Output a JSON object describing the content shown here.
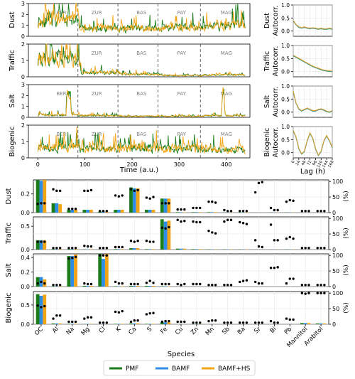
{
  "colors": {
    "pmf": "#1a7d1a",
    "bamf": "#2f8de6",
    "bamfhs": "#f2a417",
    "dots": "#000000",
    "site_text": "#808080",
    "grid": "#e6e6e6"
  },
  "legend": {
    "items": [
      "PMF",
      "BAMF",
      "BAMF+HS"
    ],
    "placement": "bottom-center"
  },
  "chart_data": [
    {
      "type": "line",
      "panel": "time-series",
      "xlabel": "Time (a.u.)",
      "xlim": [
        -20,
        450
      ],
      "x_ticks": [
        0,
        100,
        200,
        300,
        400
      ],
      "sites": [
        {
          "label": "BER",
          "x": 50
        },
        {
          "label": "ZUR",
          "x": 125
        },
        {
          "label": "BAS",
          "x": 220
        },
        {
          "label": "PAY",
          "x": 305
        },
        {
          "label": "MAG",
          "x": 400
        }
      ],
      "site_boundaries": [
        85,
        170,
        255,
        345
      ],
      "series_names": [
        "PMF",
        "BAMF",
        "BAMF+HS"
      ],
      "rows": [
        {
          "ylabel": "Dust",
          "ylim": [
            0,
            3
          ],
          "y_ticks": [
            0,
            1,
            2,
            3
          ],
          "levels": [
            1.5,
            0.7,
            0.7,
            0.8,
            1.0
          ]
        },
        {
          "ylabel": "Traffic",
          "ylim": [
            0,
            2
          ],
          "y_ticks": [
            0,
            1,
            2
          ],
          "levels": [
            1.1,
            0.25,
            0.15,
            0.08,
            0.12
          ]
        },
        {
          "ylabel": "Salt",
          "ylim": [
            0,
            3
          ],
          "y_ticks": [
            0,
            1,
            2,
            3
          ],
          "levels": [
            0.2,
            0.15,
            0.1,
            0.1,
            0.15
          ]
        },
        {
          "ylabel": "Biogenic",
          "ylim": [
            0,
            2
          ],
          "y_ticks": [
            0,
            1,
            2
          ],
          "levels": [
            0.6,
            0.5,
            0.6,
            0.55,
            0.5
          ]
        }
      ]
    },
    {
      "type": "line",
      "panel": "autocorrelation",
      "xlabel": "Lag (h)",
      "x_ticks": [
        "0",
        "24",
        "48",
        "72",
        "96",
        "120",
        "144",
        "168"
      ],
      "lag_hours": [
        0,
        12,
        24,
        36,
        48,
        60,
        72,
        84,
        96,
        108,
        120,
        132,
        144,
        156,
        168
      ],
      "rows": [
        {
          "ylabel": "Dust",
          "ylabel2": "Autocorr.",
          "ylim": [
            -0.2,
            1.0
          ],
          "y_ticks": [
            "0.0",
            "0.5",
            "1.0"
          ],
          "values": [
            0.4,
            0.25,
            0.15,
            0.12,
            0.15,
            0.12,
            0.1,
            0.12,
            0.1,
            0.08,
            0.1,
            0.08,
            0.08,
            0.1,
            0.08
          ]
        },
        {
          "ylabel": "Traffic",
          "ylabel2": "Autocorr.",
          "ylim": [
            -0.2,
            1.0
          ],
          "y_ticks": [
            "0.0",
            "0.5",
            "1.0"
          ],
          "values": [
            0.62,
            0.56,
            0.5,
            0.44,
            0.38,
            0.32,
            0.26,
            0.2,
            0.16,
            0.12,
            0.08,
            0.05,
            0.03,
            0.02,
            0.01
          ]
        },
        {
          "ylabel": "Salt",
          "ylabel2": "Autocorr.",
          "ylim": [
            -0.2,
            1.0
          ],
          "y_ticks": [
            "0.0",
            "0.5",
            "1.0"
          ],
          "values": [
            0.8,
            0.35,
            0.12,
            0.05,
            0.1,
            0.15,
            0.1,
            0.05,
            0.05,
            0.1,
            0.12,
            0.08,
            0.03,
            0.0,
            0.05
          ]
        },
        {
          "ylabel": "Biogenic",
          "ylabel2": "Autocorr.",
          "ylim": [
            -0.2,
            1.0
          ],
          "y_ticks": [
            "0.0",
            "0.5",
            "1.0"
          ],
          "values": [
            0.85,
            0.6,
            0.15,
            -0.05,
            0.05,
            0.45,
            0.75,
            0.55,
            0.15,
            -0.1,
            0.05,
            0.45,
            0.65,
            0.45,
            0.2
          ]
        }
      ]
    },
    {
      "type": "bar",
      "panel": "profiles",
      "xlabel": "Species",
      "y2label": "(%)",
      "categories": [
        "OC",
        "Al",
        "Na",
        "Mg",
        "Cl",
        "K",
        "Ca",
        "S",
        "Fe",
        "Cu",
        "Zn",
        "Mn",
        "Sb",
        "Ba",
        "Sr",
        "Bi",
        "Pb",
        "Mannitol",
        "Arabitol"
      ],
      "series_names": [
        "PMF",
        "BAMF",
        "BAMF+HS"
      ],
      "rows": [
        {
          "ylabel": "Dust",
          "ylim": [
            0,
            0.35
          ],
          "y_ticks": [
            "0.0",
            "0.2"
          ],
          "y2_ticks": [
            "0",
            "50",
            "100"
          ],
          "series": [
            [
              0.35,
              0.1,
              0.03,
              0.03,
              0.01,
              0.03,
              0.27,
              0.03,
              0.15,
              0.005,
              0.005,
              0.005,
              0.002,
              0.003,
              0.001,
              0.002,
              0.002,
              0.0,
              0.0
            ],
            [
              0.34,
              0.1,
              0.03,
              0.03,
              0.01,
              0.03,
              0.26,
              0.03,
              0.15,
              0.004,
              0.005,
              0.005,
              0.002,
              0.003,
              0.001,
              0.002,
              0.002,
              0.0,
              0.0
            ],
            [
              0.35,
              0.09,
              0.03,
              0.03,
              0.01,
              0.03,
              0.26,
              0.03,
              0.15,
              0.004,
              0.005,
              0.005,
              0.002,
              0.003,
              0.001,
              0.002,
              0.002,
              0.0,
              0.0
            ]
          ],
          "percent": [
            [
              28,
              30,
              30
            ],
            [
              75,
              70,
              70
            ],
            [
              12,
              12,
              12
            ],
            [
              70,
              70,
              72
            ],
            [
              5,
              5,
              5
            ],
            [
              55,
              52,
              55
            ],
            [
              75,
              70,
              72
            ],
            [
              48,
              45,
              50
            ],
            [
              30,
              30,
              30
            ],
            [
              10,
              10,
              10
            ],
            [
              15,
              15,
              15
            ],
            [
              35,
              35,
              32
            ],
            [
              8,
              5,
              5
            ],
            [
              5,
              5,
              5
            ],
            [
              65,
              95,
              98
            ],
            [
              15,
              8,
              8
            ],
            [
              35,
              40,
              38
            ],
            [
              5,
              5,
              5
            ],
            [
              5,
              5,
              5
            ]
          ]
        },
        {
          "ylabel": "Traffic",
          "ylim": [
            0,
            0.7
          ],
          "y_ticks": [
            "0.0",
            "0.5"
          ],
          "y2_ticks": [
            "0",
            "50",
            "100"
          ],
          "series": [
            [
              0.2,
              0.01,
              0.01,
              0.005,
              0.002,
              0.01,
              0.03,
              0.01,
              0.65,
              0.02,
              0.01,
              0.005,
              0.005,
              0.005,
              0.001,
              0.002,
              0.003,
              0.0,
              0.0
            ],
            [
              0.2,
              0.01,
              0.01,
              0.005,
              0.002,
              0.01,
              0.03,
              0.01,
              0.6,
              0.02,
              0.01,
              0.005,
              0.005,
              0.005,
              0.001,
              0.002,
              0.003,
              0.0,
              0.0
            ],
            [
              0.2,
              0.01,
              0.01,
              0.005,
              0.002,
              0.01,
              0.03,
              0.01,
              0.62,
              0.02,
              0.01,
              0.005,
              0.005,
              0.005,
              0.001,
              0.002,
              0.003,
              0.0,
              0.0
            ]
          ],
          "percent": [
            [
              25,
              25,
              25
            ],
            [
              5,
              5,
              5
            ],
            [
              5,
              5,
              5
            ],
            [
              12,
              10,
              10
            ],
            [
              5,
              5,
              5
            ],
            [
              8,
              8,
              8
            ],
            [
              28,
              25,
              28
            ],
            [
              28,
              25,
              25
            ],
            [
              70,
              68,
              72
            ],
            [
              95,
              90,
              92
            ],
            [
              90,
              88,
              88
            ],
            [
              60,
              55,
              52
            ],
            [
              90,
              95,
              95
            ],
            [
              88,
              85,
              82
            ],
            [
              30,
              10,
              8
            ],
            [
              80,
              30,
              30
            ],
            [
              35,
              40,
              35
            ],
            [
              5,
              5,
              5
            ],
            [
              5,
              5,
              5
            ]
          ]
        },
        {
          "ylabel": "Salt",
          "ylim": [
            0,
            0.45
          ],
          "y_ticks": [
            "0.0",
            "0.2",
            "0.4"
          ],
          "y2_ticks": [
            "0",
            "50",
            "100"
          ],
          "series": [
            [
              0.13,
              0.005,
              0.42,
              0.01,
              0.45,
              0.005,
              0.01,
              0.01,
              0.005,
              0.001,
              0.001,
              0.0,
              0.0,
              0.0,
              0.0,
              0.0,
              0.0,
              0.0,
              0.0
            ],
            [
              0.13,
              0.005,
              0.42,
              0.01,
              0.38,
              0.005,
              0.01,
              0.01,
              0.005,
              0.001,
              0.001,
              0.0,
              0.0,
              0.0,
              0.0,
              0.0,
              0.0,
              0.0,
              0.0
            ],
            [
              0.1,
              0.005,
              0.44,
              0.01,
              0.45,
              0.005,
              0.01,
              0.01,
              0.005,
              0.001,
              0.001,
              0.0,
              0.0,
              0.0,
              0.0,
              0.0,
              0.0,
              0.0,
              0.0
            ]
          ],
          "percent": [
            [
              10,
              15,
              10
            ],
            [
              5,
              5,
              5
            ],
            [
              90,
              92,
              95
            ],
            [
              10,
              8,
              8
            ],
            [
              100,
              100,
              100
            ],
            [
              15,
              10,
              10
            ],
            [
              8,
              8,
              8
            ],
            [
              12,
              18,
              12
            ],
            [
              8,
              8,
              8
            ],
            [
              8,
              5,
              8
            ],
            [
              8,
              8,
              8
            ],
            [
              5,
              5,
              5
            ],
            [
              5,
              5,
              5
            ],
            [
              15,
              18,
              20
            ],
            [
              15,
              10,
              10
            ],
            [
              60,
              60,
              62
            ],
            [
              10,
              25,
              25
            ],
            [
              5,
              5,
              5
            ],
            [
              5,
              5,
              5
            ]
          ]
        },
        {
          "ylabel": "Biogenic",
          "ylim": [
            0,
            0.85
          ],
          "y_ticks": [
            "0.0",
            "0.5"
          ],
          "y2_ticks": [
            "0",
            "50",
            "100"
          ],
          "series": [
            [
              0.78,
              0.02,
              0.01,
              0.005,
              0.002,
              0.01,
              0.02,
              0.01,
              0.05,
              0.002,
              0.003,
              0.002,
              0.001,
              0.001,
              0.0,
              0.001,
              0.002,
              0.03,
              0.02
            ],
            [
              0.74,
              0.02,
              0.01,
              0.005,
              0.002,
              0.01,
              0.02,
              0.01,
              0.05,
              0.002,
              0.003,
              0.002,
              0.001,
              0.001,
              0.0,
              0.001,
              0.002,
              0.03,
              0.02
            ],
            [
              0.77,
              0.02,
              0.01,
              0.005,
              0.002,
              0.01,
              0.02,
              0.01,
              0.05,
              0.002,
              0.003,
              0.002,
              0.001,
              0.001,
              0.0,
              0.001,
              0.002,
              0.03,
              0.02
            ]
          ],
          "percent": [
            [
              60,
              55,
              58
            ],
            [
              18,
              28,
              28
            ],
            [
              8,
              8,
              8
            ],
            [
              18,
              22,
              22
            ],
            [
              5,
              5,
              5
            ],
            [
              40,
              38,
              42
            ],
            [
              8,
              12,
              12
            ],
            [
              32,
              35,
              36
            ],
            [
              8,
              10,
              10
            ],
            [
              8,
              8,
              8
            ],
            [
              5,
              5,
              5
            ],
            [
              10,
              12,
              12
            ],
            [
              5,
              5,
              5
            ],
            [
              5,
              5,
              5
            ],
            [
              5,
              5,
              5
            ],
            [
              10,
              5,
              5
            ],
            [
              18,
              15,
              15
            ],
            [
              100,
              98,
              100
            ],
            [
              100,
              100,
              100
            ]
          ]
        }
      ]
    }
  ]
}
